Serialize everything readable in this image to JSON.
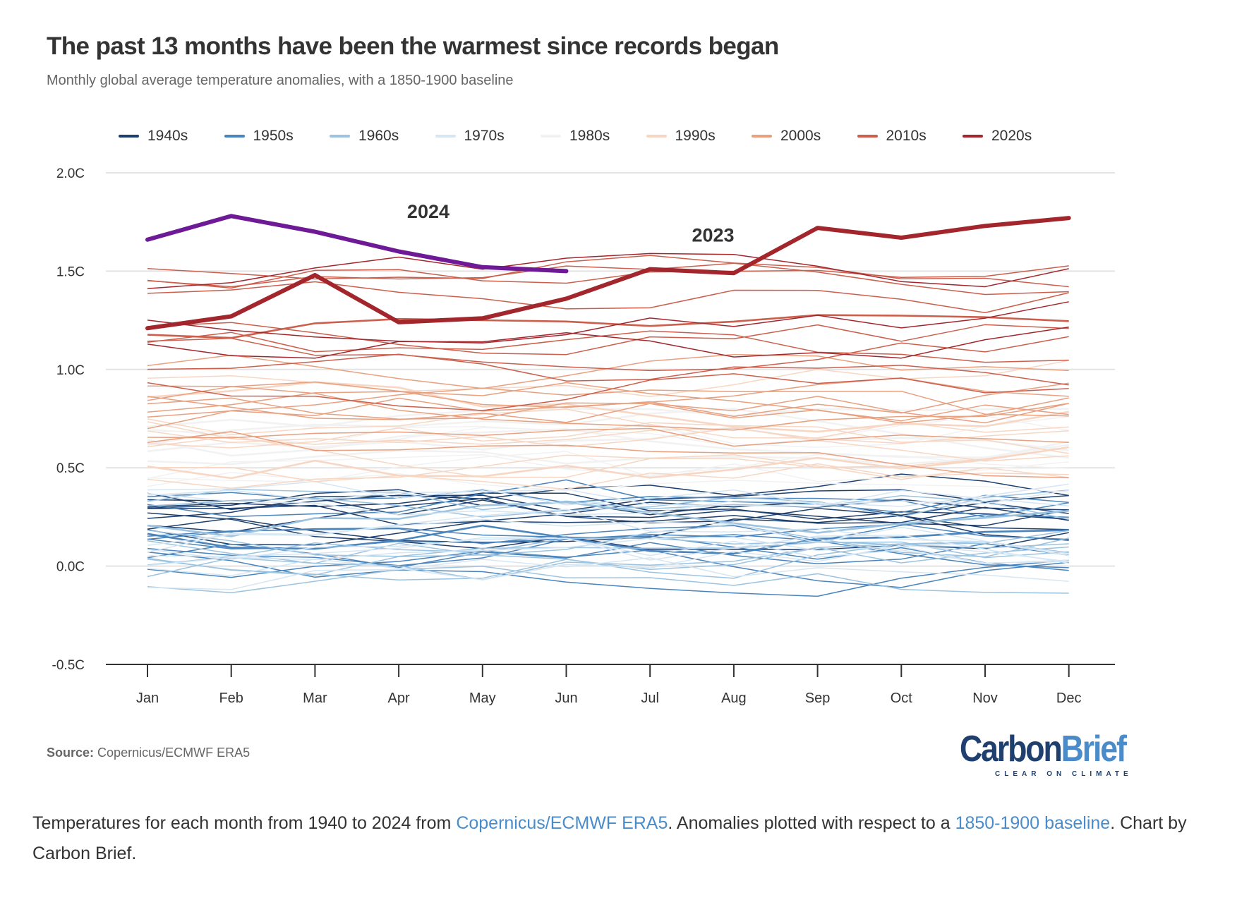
{
  "header": {
    "title": "The past 13 months have been the warmest since records began",
    "subtitle": "Monthly global average temperature anomalies, with a 1850-1900 baseline"
  },
  "legend": [
    {
      "label": "1940s",
      "color": "#1d3f6e"
    },
    {
      "label": "1950s",
      "color": "#4a84bd"
    },
    {
      "label": "1960s",
      "color": "#9cc3e0"
    },
    {
      "label": "1970s",
      "color": "#d6e6f3"
    },
    {
      "label": "1980s",
      "color": "#f2f2f2"
    },
    {
      "label": "1990s",
      "color": "#f7d7c4"
    },
    {
      "label": "2000s",
      "color": "#e8a07f"
    },
    {
      "label": "2010s",
      "color": "#cc5e4c"
    },
    {
      "label": "2020s",
      "color": "#a3262d"
    }
  ],
  "chart_data": {
    "type": "line",
    "title": "The past 13 months have been the warmest since records began",
    "subtitle": "Monthly global average temperature anomalies, with a 1850-1900 baseline",
    "xlabel": "",
    "ylabel": "",
    "categories": [
      "Jan",
      "Feb",
      "Mar",
      "Apr",
      "May",
      "Jun",
      "Jul",
      "Aug",
      "Sep",
      "Oct",
      "Nov",
      "Dec"
    ],
    "yticks": [
      -0.5,
      0.0,
      0.5,
      1.0,
      1.5,
      2.0
    ],
    "ytick_labels": [
      "-0.5C",
      "0.0C",
      "0.5C",
      "1.0C",
      "1.5C",
      "2.0C"
    ],
    "ylim": [
      -0.5,
      2.0
    ],
    "grid": true,
    "legend_position": "top",
    "highlight_series": [
      {
        "name": "2024",
        "color": "#6e1a96",
        "label": "2024",
        "values": [
          1.66,
          1.78,
          1.7,
          1.6,
          1.52,
          1.5
        ]
      },
      {
        "name": "2023",
        "color": "#a3262d",
        "label": "2023",
        "values": [
          1.21,
          1.27,
          1.48,
          1.24,
          1.26,
          1.36,
          1.51,
          1.49,
          1.72,
          1.67,
          1.73,
          1.77
        ]
      }
    ],
    "decade_ranges": [
      {
        "decade": "1940s",
        "color": "#1d3f6e",
        "years": 10,
        "approx_range": [
          0.0,
          0.45
        ]
      },
      {
        "decade": "1950s",
        "color": "#4a84bd",
        "years": 10,
        "approx_range": [
          -0.15,
          0.5
        ]
      },
      {
        "decade": "1960s",
        "color": "#9cc3e0",
        "years": 10,
        "approx_range": [
          -0.15,
          0.5
        ]
      },
      {
        "decade": "1970s",
        "color": "#d6e6f3",
        "years": 10,
        "approx_range": [
          -0.2,
          0.55
        ]
      },
      {
        "decade": "1980s",
        "color": "#f2f2f2",
        "years": 10,
        "approx_range": [
          0.3,
          0.75
        ]
      },
      {
        "decade": "1990s",
        "color": "#f7d7c4",
        "years": 10,
        "approx_range": [
          0.4,
          1.1
        ]
      },
      {
        "decade": "2000s",
        "color": "#e8a07f",
        "years": 10,
        "approx_range": [
          0.45,
          1.1
        ]
      },
      {
        "decade": "2010s",
        "color": "#cc5e4c",
        "years": 10,
        "approx_range": [
          0.8,
          1.65
        ]
      },
      {
        "decade": "2020s",
        "color": "#a3262d",
        "years": 3,
        "approx_range": [
          1.0,
          1.6
        ]
      }
    ]
  },
  "footer": {
    "source_label": "Source:",
    "source_text": "Copernicus/ECMWF ERA5",
    "logo_carbon": "Carbon",
    "logo_brief": "Brief",
    "logo_tagline": "CLEAR ON CLIMATE"
  },
  "caption": {
    "part1": "Temperatures for each month from 1940 to 2024 from ",
    "link1": "Copernicus/ECMWF ERA5",
    "part2": ". Anomalies plotted with respect to a ",
    "link2": "1850-1900 baseline",
    "part3": ". Chart by Carbon Brief."
  }
}
